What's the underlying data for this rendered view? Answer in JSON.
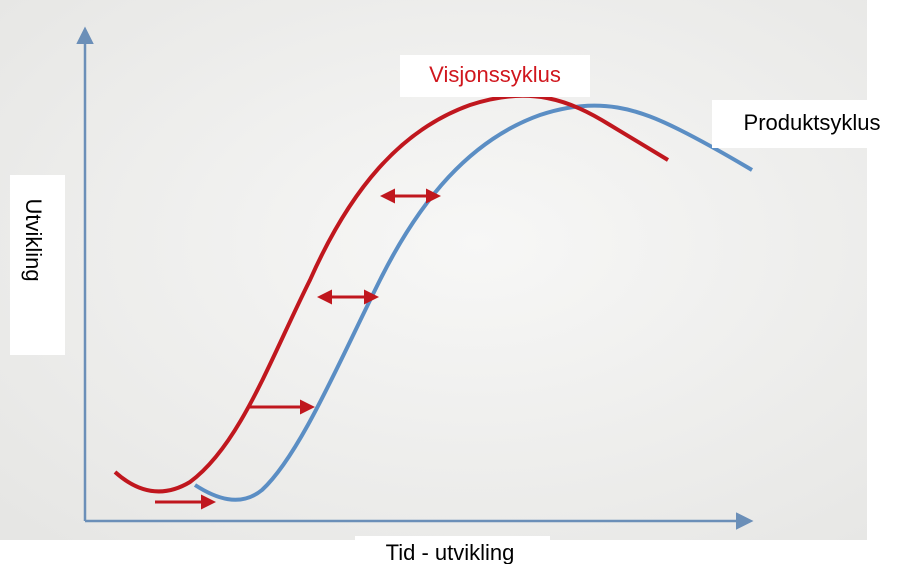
{
  "labels": {
    "vision_cycle": "Visjonssyklus",
    "product_cycle": "Produktsyklus",
    "y_axis": "Utvikling",
    "x_axis": "Tid - utvikling"
  }
}
